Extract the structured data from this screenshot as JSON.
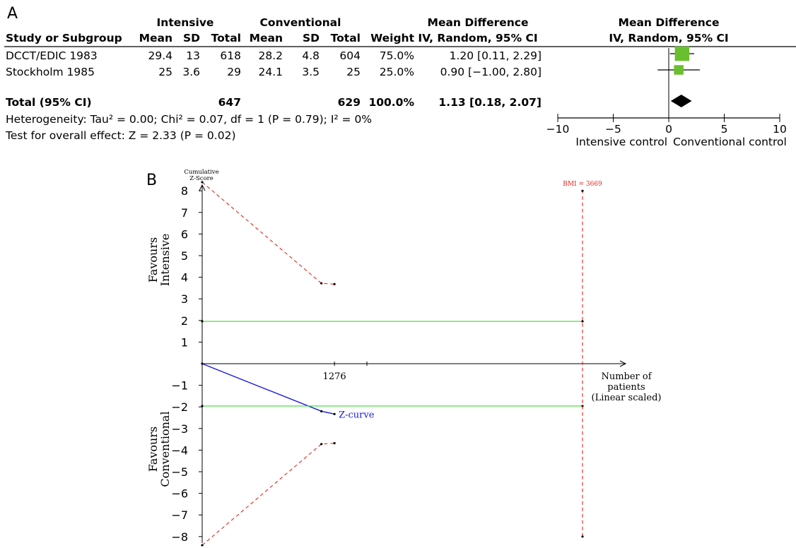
{
  "panel_a": {
    "label": "A",
    "header": {
      "intensive": "Intensive",
      "conventional": "Conventional",
      "mean_difference": "Mean Difference",
      "mean_difference_plot": "Mean Difference",
      "study_or_subgroup": "Study or Subgroup",
      "mean": "Mean",
      "sd": "SD",
      "total": "Total",
      "weight": "Weight",
      "method": "IV, Random, 95% CI",
      "method_plot": "IV, Random, 95% CI"
    },
    "rows": [
      {
        "study": "DCCT/EDIC 1983",
        "int_mean": "29.4",
        "int_sd": "13",
        "int_total": "618",
        "con_mean": "28.2",
        "con_sd": "4.8",
        "con_total": "604",
        "weight": "75.0%",
        "ci_text": "1.20 [0.11, 2.29]"
      },
      {
        "study": "Stockholm 1985",
        "int_mean": "25",
        "int_sd": "3.6",
        "int_total": "29",
        "con_mean": "24.1",
        "con_sd": "3.5",
        "con_total": "25",
        "weight": "25.0%",
        "ci_text": "0.90 [−1.00, 2.80]"
      }
    ],
    "total_row": {
      "label": "Total (95% CI)",
      "int_total": "647",
      "con_total": "629",
      "weight": "100.0%",
      "ci_text": "1.13 [0.18, 2.07]"
    },
    "heterogeneity": "Heterogeneity: Tau² = 0.00; Chi² = 0.07, df = 1 (P = 0.79); I² = 0%",
    "overall_effect": "Test for overall effect: Z = 2.33 (P = 0.02)",
    "axis_left_label": "Intensive control",
    "axis_right_label": "Conventional control",
    "colors": {
      "square": "#6abf2e",
      "diamond": "#000000"
    }
  },
  "panel_b": {
    "label": "B",
    "y_axis_title": "Cumulative\nZ-Score",
    "favours_top": "Favours\nIntensive",
    "favours_bottom": "Favours\nConventional",
    "x_axis_title": "Number of\npatients\n(Linear scaled)",
    "x_tick_label": "1276",
    "bmi_label": "BMI = 3669",
    "z_curve_label": "Z-curve",
    "colors": {
      "boundary": "#e8221b",
      "z_curve": "#1a1ae6",
      "conventional": "#33dd33",
      "axis": "#000000"
    }
  },
  "chart_data": [
    {
      "type": "forest",
      "title": "",
      "studies": [
        {
          "name": "DCCT/EDIC 1983",
          "md": 1.2,
          "ci_low": 0.11,
          "ci_high": 2.29,
          "weight": 75.0
        },
        {
          "name": "Stockholm 1985",
          "md": 0.9,
          "ci_low": -1.0,
          "ci_high": 2.8,
          "weight": 25.0
        }
      ],
      "pooled": {
        "name": "Total (95% CI)",
        "md": 1.13,
        "ci_low": 0.18,
        "ci_high": 2.07
      },
      "xlim": [
        -10,
        10
      ],
      "x_ticks": [
        -10,
        -5,
        0,
        5,
        10
      ],
      "xlabel_left": "Intensive control",
      "xlabel_right": "Conventional control"
    },
    {
      "type": "line",
      "title": "",
      "xlabel": "Number of patients (Linear scaled)",
      "ylabel": "Cumulative Z-Score",
      "xlim": [
        0,
        6000
      ],
      "ylim": [
        -8,
        8
      ],
      "y_ticks": [
        8,
        7,
        6,
        5,
        4,
        3,
        2,
        1,
        -1,
        -2,
        -3,
        -4,
        -5,
        -6,
        -7,
        -8
      ],
      "x_ticks": [
        1276
      ],
      "required_information_size": 3669,
      "series": [
        {
          "name": "Z-curve",
          "points": [
            [
              0,
              0
            ],
            [
              1150,
              -2.2
            ],
            [
              1276,
              -2.33
            ]
          ]
        },
        {
          "points": [
            [
              0,
              8.4
            ],
            [
              1150,
              3.72
            ],
            [
              1276,
              3.68
            ]
          ]
        },
        {
          "points": [
            [
              0,
              -8.4
            ],
            [
              1150,
              -3.72
            ],
            [
              1276,
              -3.68
            ]
          ]
        },
        {
          "points": [
            [
              0,
              1.96
            ],
            [
              3669,
              1.96
            ]
          ]
        },
        {
          "points": [
            [
              0,
              -1.96
            ],
            [
              3669,
              -1.96
            ]
          ]
        },
        {
          "points": [
            [
              3669,
              -8
            ],
            [
              3669,
              8
            ]
          ]
        }
      ]
    }
  ]
}
